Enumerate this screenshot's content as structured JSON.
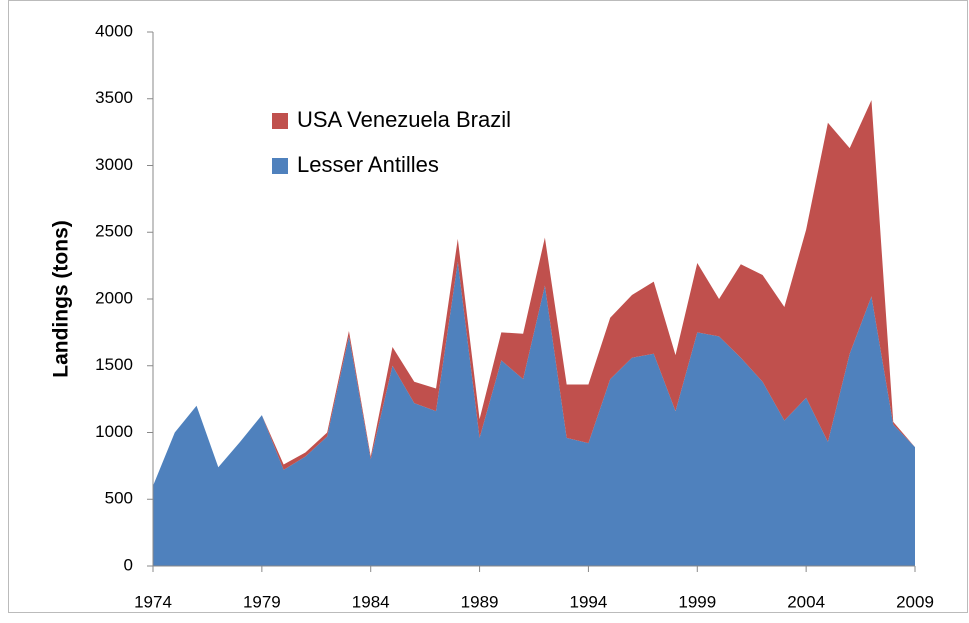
{
  "chart_data": {
    "type": "area",
    "stacked": true,
    "y_label": "Landings (tons)",
    "x": [
      1974,
      1975,
      1976,
      1977,
      1978,
      1979,
      1980,
      1981,
      1982,
      1983,
      1984,
      1985,
      1986,
      1987,
      1988,
      1989,
      1990,
      1991,
      1992,
      1993,
      1994,
      1995,
      1996,
      1997,
      1998,
      1999,
      2000,
      2001,
      2002,
      2003,
      2004,
      2005,
      2006,
      2007,
      2008,
      2009
    ],
    "series": [
      {
        "name": "Lesser Antilles",
        "color": "#4f81bd",
        "values": [
          600,
          1000,
          1200,
          740,
          930,
          1130,
          720,
          820,
          970,
          1720,
          800,
          1500,
          1220,
          1160,
          2280,
          960,
          1540,
          1400,
          2100,
          960,
          920,
          1400,
          1560,
          1590,
          1160,
          1750,
          1720,
          1560,
          1380,
          1090,
          1260,
          930,
          1590,
          2020,
          1060,
          890
        ]
      },
      {
        "name": "USA Venezuela Brazil",
        "color": "#c0504d",
        "values": [
          0,
          0,
          0,
          0,
          0,
          0,
          40,
          30,
          30,
          40,
          20,
          140,
          160,
          170,
          170,
          140,
          210,
          340,
          360,
          400,
          440,
          460,
          470,
          540,
          420,
          520,
          280,
          700,
          800,
          850,
          1260,
          2390,
          1540,
          1470,
          20,
          0
        ]
      }
    ],
    "xlim": [
      1974,
      2009
    ],
    "xticks": [
      1974,
      1979,
      1984,
      1989,
      1994,
      1999,
      2004,
      2009
    ],
    "ylim": [
      0,
      4000
    ],
    "yticks": [
      0,
      500,
      1000,
      1500,
      2000,
      2500,
      3000,
      3500,
      4000
    ],
    "grid": false,
    "legend": "upper-left"
  }
}
